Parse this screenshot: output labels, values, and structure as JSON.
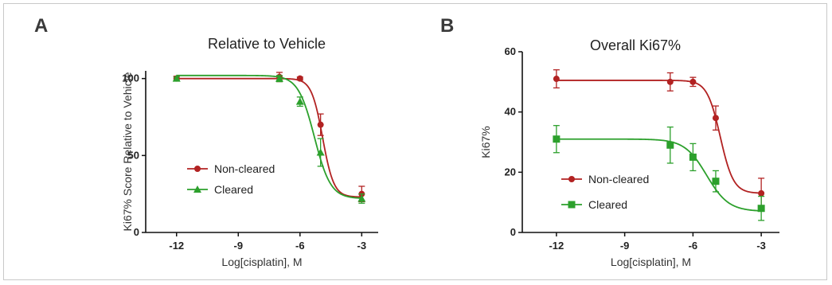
{
  "chart_data": [
    {
      "panel": "A",
      "type": "line",
      "title": "Relative to Vehicle",
      "xlabel": "Log[cisplatin], M",
      "ylabel": "Ki67% Score Relative to Vehicle",
      "xlim": [
        -13.5,
        -2.2
      ],
      "ylim": [
        0,
        105
      ],
      "xticks": [
        -12,
        -9,
        -6,
        -3
      ],
      "yticks": [
        0,
        50,
        100
      ],
      "legend_position": "center-left",
      "series": [
        {
          "name": "Non-cleared",
          "color": "#b22222",
          "marker": "circle",
          "x": [
            -12,
            -7,
            -6,
            -5,
            -3
          ],
          "y": [
            100,
            101,
            100,
            70,
            25
          ],
          "err": [
            1.5,
            3,
            1,
            7,
            5
          ],
          "fit": {
            "top": 100,
            "bottom": 23,
            "logEC50": -4.9,
            "hill": 1.6
          }
        },
        {
          "name": "Cleared",
          "color": "#2ca02c",
          "marker": "triangle",
          "x": [
            -12,
            -7,
            -6,
            -5,
            -3
          ],
          "y": [
            100,
            100,
            85,
            52,
            22
          ],
          "err": [
            1,
            2,
            3,
            9,
            3
          ],
          "fit": {
            "top": 102,
            "bottom": 22,
            "logEC50": -5.3,
            "hill": 1.1
          }
        }
      ]
    },
    {
      "panel": "B",
      "type": "line",
      "title": "Overall Ki67%",
      "xlabel": "Log[cisplatin], M",
      "ylabel": "Ki67%",
      "xlim": [
        -13.5,
        -2.2
      ],
      "ylim": [
        0,
        60
      ],
      "xticks": [
        -12,
        -9,
        -6,
        -3
      ],
      "yticks": [
        0,
        20,
        40,
        60
      ],
      "legend_position": "bottom-left",
      "series": [
        {
          "name": "Non-cleared",
          "color": "#b22222",
          "marker": "circle",
          "x": [
            -12,
            -7,
            -6,
            -5,
            -3
          ],
          "y": [
            51,
            50,
            50,
            38,
            13
          ],
          "err": [
            3,
            3,
            1.5,
            4,
            5
          ],
          "fit": {
            "top": 50.5,
            "bottom": 13,
            "logEC50": -4.8,
            "hill": 1.5
          }
        },
        {
          "name": "Cleared",
          "color": "#2ca02c",
          "marker": "square",
          "x": [
            -12,
            -7,
            -6,
            -5,
            -3
          ],
          "y": [
            31,
            29,
            25,
            17,
            8
          ],
          "err": [
            4.5,
            6,
            4.5,
            3.5,
            4
          ],
          "fit": {
            "top": 31,
            "bottom": 7,
            "logEC50": -5.4,
            "hill": 0.9
          }
        }
      ]
    }
  ],
  "panels": {
    "a_letter": "A",
    "b_letter": "B"
  }
}
